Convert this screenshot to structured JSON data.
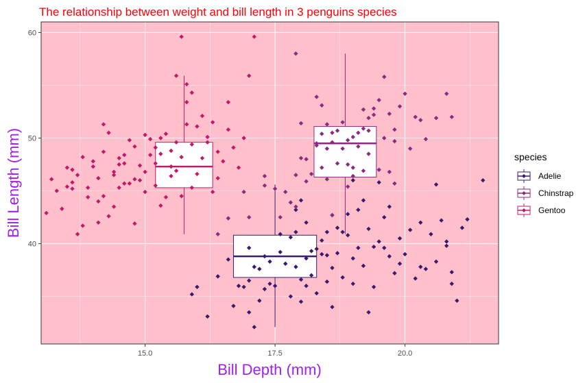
{
  "chart_data": {
    "type": "scatter",
    "overlay": "boxplot",
    "title": "The relationship between weight and bill length in 3 penguins species",
    "xlabel": "Bill Depth (mm)",
    "ylabel": "Bill Length (mm)",
    "xlim": [
      13.0,
      21.8
    ],
    "ylim": [
      30.5,
      61.0
    ],
    "xticks": [
      15.0,
      17.5,
      20.0
    ],
    "xtick_labels": [
      "15.0",
      "17.5",
      "20.0"
    ],
    "yticks": [
      40,
      50,
      60
    ],
    "ytick_labels": [
      "40",
      "50",
      "60"
    ],
    "grid": true,
    "panel_background": "#ffc0cb",
    "legend": {
      "title": "species",
      "position": "right"
    },
    "series": [
      {
        "name": "Adelie",
        "color": "#3b1a6e",
        "box": {
          "x": 17.5,
          "half_width": 0.8,
          "q1": 36.8,
          "median": 38.8,
          "q3": 40.8,
          "whisker_low": 32.1,
          "whisker_high": 45.6
        },
        "points": [
          [
            17.1,
            32.1
          ],
          [
            15.9,
            35.2
          ],
          [
            16.4,
            36.9
          ],
          [
            16.7,
            34.1
          ],
          [
            16.9,
            35.9
          ],
          [
            17.0,
            36.5
          ],
          [
            17.2,
            37.6
          ],
          [
            17.3,
            38.8
          ],
          [
            17.4,
            36.2
          ],
          [
            17.6,
            39.2
          ],
          [
            17.7,
            38.1
          ],
          [
            17.8,
            40.6
          ],
          [
            17.9,
            37.8
          ],
          [
            18.0,
            36.6
          ],
          [
            18.1,
            38.6
          ],
          [
            18.2,
            37.0
          ],
          [
            18.3,
            39.5
          ],
          [
            18.4,
            40.3
          ],
          [
            18.5,
            38.9
          ],
          [
            18.6,
            37.7
          ],
          [
            18.7,
            39.1
          ],
          [
            18.8,
            41.1
          ],
          [
            18.9,
            40.8
          ],
          [
            19.0,
            38.6
          ],
          [
            19.1,
            39.6
          ],
          [
            19.2,
            37.9
          ],
          [
            19.3,
            41.4
          ],
          [
            19.4,
            39.7
          ],
          [
            19.5,
            40.2
          ],
          [
            19.6,
            42.5
          ],
          [
            19.7,
            38.8
          ],
          [
            19.8,
            37.2
          ],
          [
            19.9,
            40.5
          ],
          [
            20.0,
            39.0
          ],
          [
            20.1,
            41.3
          ],
          [
            20.2,
            36.7
          ],
          [
            20.3,
            42.0
          ],
          [
            20.4,
            37.6
          ],
          [
            20.5,
            40.9
          ],
          [
            20.6,
            38.3
          ],
          [
            20.7,
            42.2
          ],
          [
            20.8,
            39.8
          ],
          [
            20.9,
            37.3
          ],
          [
            21.1,
            41.5
          ],
          [
            21.2,
            42.3
          ],
          [
            21.5,
            46.0
          ],
          [
            21.0,
            34.6
          ],
          [
            16.2,
            33.1
          ],
          [
            17.0,
            33.5
          ],
          [
            18.0,
            34.5
          ],
          [
            18.6,
            34.0
          ],
          [
            18.3,
            35.3
          ],
          [
            17.8,
            35.0
          ],
          [
            19.4,
            35.9
          ],
          [
            16.0,
            35.9
          ],
          [
            17.2,
            34.6
          ],
          [
            20.9,
            36.2
          ],
          [
            19.3,
            33.5
          ],
          [
            18.5,
            36.4
          ],
          [
            19.0,
            36.2
          ],
          [
            17.0,
            39.6
          ],
          [
            17.1,
            37.8
          ],
          [
            17.9,
            41.1
          ],
          [
            18.1,
            42.0
          ],
          [
            18.2,
            39.3
          ],
          [
            18.7,
            41.5
          ],
          [
            18.9,
            42.8
          ],
          [
            19.1,
            43.2
          ],
          [
            19.6,
            39.6
          ],
          [
            18.4,
            39.0
          ],
          [
            17.6,
            40.9
          ],
          [
            17.4,
            38.3
          ],
          [
            17.3,
            35.7
          ],
          [
            16.6,
            38.5
          ],
          [
            16.8,
            36.0
          ],
          [
            17.5,
            36.0
          ],
          [
            18.8,
            36.8
          ],
          [
            19.9,
            38.1
          ],
          [
            20.3,
            37.8
          ],
          [
            20.6,
            45.6
          ],
          [
            18.0,
            44.1
          ],
          [
            17.9,
            43.2
          ],
          [
            18.6,
            42.7
          ],
          [
            19.5,
            45.8
          ],
          [
            19.2,
            44.1
          ],
          [
            19.0,
            46.0
          ],
          [
            18.5,
            41.1
          ],
          [
            19.7,
            43.5
          ],
          [
            18.1,
            36.0
          ],
          [
            20.8,
            40.2
          ]
        ]
      },
      {
        "name": "Chinstrap",
        "color": "#8b2a7e",
        "box": {
          "x": 18.85,
          "half_width": 0.6,
          "q1": 46.3,
          "median": 49.5,
          "q3": 51.1,
          "whisker_low": 40.9,
          "whisker_high": 58.0
        },
        "points": [
          [
            17.9,
            58.0
          ],
          [
            18.4,
            53.1
          ],
          [
            18.6,
            50.5
          ],
          [
            18.8,
            49.0
          ],
          [
            19.0,
            46.4
          ],
          [
            19.2,
            50.9
          ],
          [
            19.4,
            52.2
          ],
          [
            19.5,
            53.6
          ],
          [
            19.6,
            55.8
          ],
          [
            19.8,
            50.8
          ],
          [
            20.0,
            54.2
          ],
          [
            20.2,
            52.0
          ],
          [
            20.4,
            49.9
          ],
          [
            20.6,
            51.9
          ],
          [
            20.9,
            52.0
          ],
          [
            18.1,
            45.9
          ],
          [
            17.9,
            46.5
          ],
          [
            18.3,
            49.5
          ],
          [
            18.5,
            51.3
          ],
          [
            18.7,
            47.6
          ],
          [
            18.9,
            45.4
          ],
          [
            19.1,
            50.5
          ],
          [
            19.3,
            51.9
          ],
          [
            19.7,
            46.8
          ],
          [
            17.5,
            45.2
          ],
          [
            17.3,
            45.5
          ],
          [
            17.6,
            42.5
          ],
          [
            17.0,
            42.5
          ],
          [
            16.6,
            42.4
          ],
          [
            16.4,
            40.9
          ],
          [
            16.9,
            44.9
          ],
          [
            18.0,
            48.1
          ],
          [
            18.2,
            46.6
          ],
          [
            18.4,
            47.2
          ],
          [
            18.6,
            49.6
          ],
          [
            18.8,
            51.5
          ],
          [
            19.0,
            50.1
          ],
          [
            19.2,
            52.7
          ],
          [
            19.4,
            52.8
          ],
          [
            19.6,
            50.0
          ],
          [
            19.8,
            45.7
          ],
          [
            17.9,
            43.5
          ],
          [
            18.3,
            49.3
          ],
          [
            18.5,
            46.1
          ],
          [
            18.7,
            50.7
          ],
          [
            18.9,
            49.8
          ],
          [
            19.1,
            49.2
          ],
          [
            19.3,
            48.5
          ],
          [
            19.5,
            47.0
          ],
          [
            19.9,
            53.0
          ],
          [
            20.3,
            51.7
          ],
          [
            20.8,
            54.2
          ],
          [
            19.0,
            47.2
          ],
          [
            18.1,
            48.0
          ],
          [
            17.8,
            43.9
          ],
          [
            17.7,
            44.9
          ],
          [
            20.1,
            49.0
          ],
          [
            19.7,
            52.3
          ],
          [
            18.3,
            53.9
          ],
          [
            18.9,
            47.5
          ],
          [
            19.3,
            50.7
          ],
          [
            19.8,
            49.7
          ],
          [
            18.6,
            42.7
          ],
          [
            18.0,
            51.4
          ],
          [
            18.5,
            49.0
          ],
          [
            17.3,
            46.4
          ],
          [
            19.2,
            46.9
          ],
          [
            18.4,
            50.4
          ]
        ]
      },
      {
        "name": "Gentoo",
        "color": "#c2186b",
        "box": {
          "x": 15.75,
          "half_width": 0.55,
          "q1": 45.3,
          "median": 47.3,
          "q3": 49.6,
          "whisker_low": 40.9,
          "whisker_high": 55.9
        },
        "points": [
          [
            13.1,
            42.9
          ],
          [
            13.2,
            46.1
          ],
          [
            13.3,
            45.0
          ],
          [
            13.4,
            43.3
          ],
          [
            13.5,
            47.2
          ],
          [
            13.6,
            45.2
          ],
          [
            13.7,
            46.5
          ],
          [
            13.8,
            48.2
          ],
          [
            13.9,
            44.4
          ],
          [
            14.0,
            47.8
          ],
          [
            14.1,
            46.2
          ],
          [
            14.2,
            48.7
          ],
          [
            14.3,
            50.5
          ],
          [
            14.4,
            46.8
          ],
          [
            14.5,
            45.3
          ],
          [
            14.6,
            48.4
          ],
          [
            14.7,
            45.7
          ],
          [
            14.8,
            49.2
          ],
          [
            14.9,
            47.4
          ],
          [
            15.0,
            46.8
          ],
          [
            15.1,
            49.9
          ],
          [
            15.2,
            45.5
          ],
          [
            15.3,
            48.5
          ],
          [
            15.4,
            50.4
          ],
          [
            15.5,
            47.3
          ],
          [
            15.6,
            46.9
          ],
          [
            15.7,
            48.2
          ],
          [
            15.8,
            55.1
          ],
          [
            15.9,
            49.4
          ],
          [
            16.0,
            51.1
          ],
          [
            16.1,
            52.1
          ],
          [
            16.2,
            49.6
          ],
          [
            16.3,
            51.5
          ],
          [
            16.4,
            48.7
          ],
          [
            16.6,
            50.8
          ],
          [
            16.7,
            49.1
          ],
          [
            16.9,
            50.0
          ],
          [
            17.0,
            55.9
          ],
          [
            17.1,
            59.6
          ],
          [
            15.7,
            59.6
          ],
          [
            15.8,
            53.4
          ],
          [
            15.9,
            54.3
          ],
          [
            15.6,
            55.9
          ],
          [
            15.5,
            48.8
          ],
          [
            15.3,
            50.0
          ],
          [
            15.2,
            47.6
          ],
          [
            15.0,
            44.9
          ],
          [
            14.8,
            46.1
          ],
          [
            14.6,
            45.7
          ],
          [
            14.4,
            43.5
          ],
          [
            14.2,
            44.5
          ],
          [
            14.0,
            47.3
          ],
          [
            13.8,
            41.7
          ],
          [
            13.7,
            40.9
          ],
          [
            13.6,
            45.8
          ],
          [
            13.5,
            45.4
          ],
          [
            14.1,
            44.0
          ],
          [
            14.3,
            42.6
          ],
          [
            14.5,
            47.5
          ],
          [
            14.7,
            49.8
          ],
          [
            14.9,
            46.0
          ],
          [
            15.1,
            48.4
          ],
          [
            15.3,
            43.6
          ],
          [
            15.5,
            46.4
          ],
          [
            15.7,
            44.5
          ],
          [
            15.9,
            45.3
          ],
          [
            16.1,
            48.1
          ],
          [
            16.3,
            44.9
          ],
          [
            16.5,
            47.8
          ],
          [
            14.2,
            51.3
          ],
          [
            14.8,
            41.9
          ],
          [
            15.4,
            44.4
          ],
          [
            16.0,
            46.6
          ],
          [
            15.2,
            49.1
          ],
          [
            14.4,
            46.5
          ],
          [
            13.9,
            45.3
          ],
          [
            14.6,
            47.6
          ],
          [
            15.8,
            51.3
          ],
          [
            16.2,
            50.1
          ],
          [
            16.8,
            47.2
          ],
          [
            15.0,
            50.3
          ],
          [
            14.5,
            48.1
          ],
          [
            13.6,
            47.0
          ],
          [
            15.6,
            49.6
          ],
          [
            16.6,
            53.4
          ],
          [
            16.4,
            46.2
          ],
          [
            14.1,
            42.0
          ]
        ]
      }
    ]
  }
}
